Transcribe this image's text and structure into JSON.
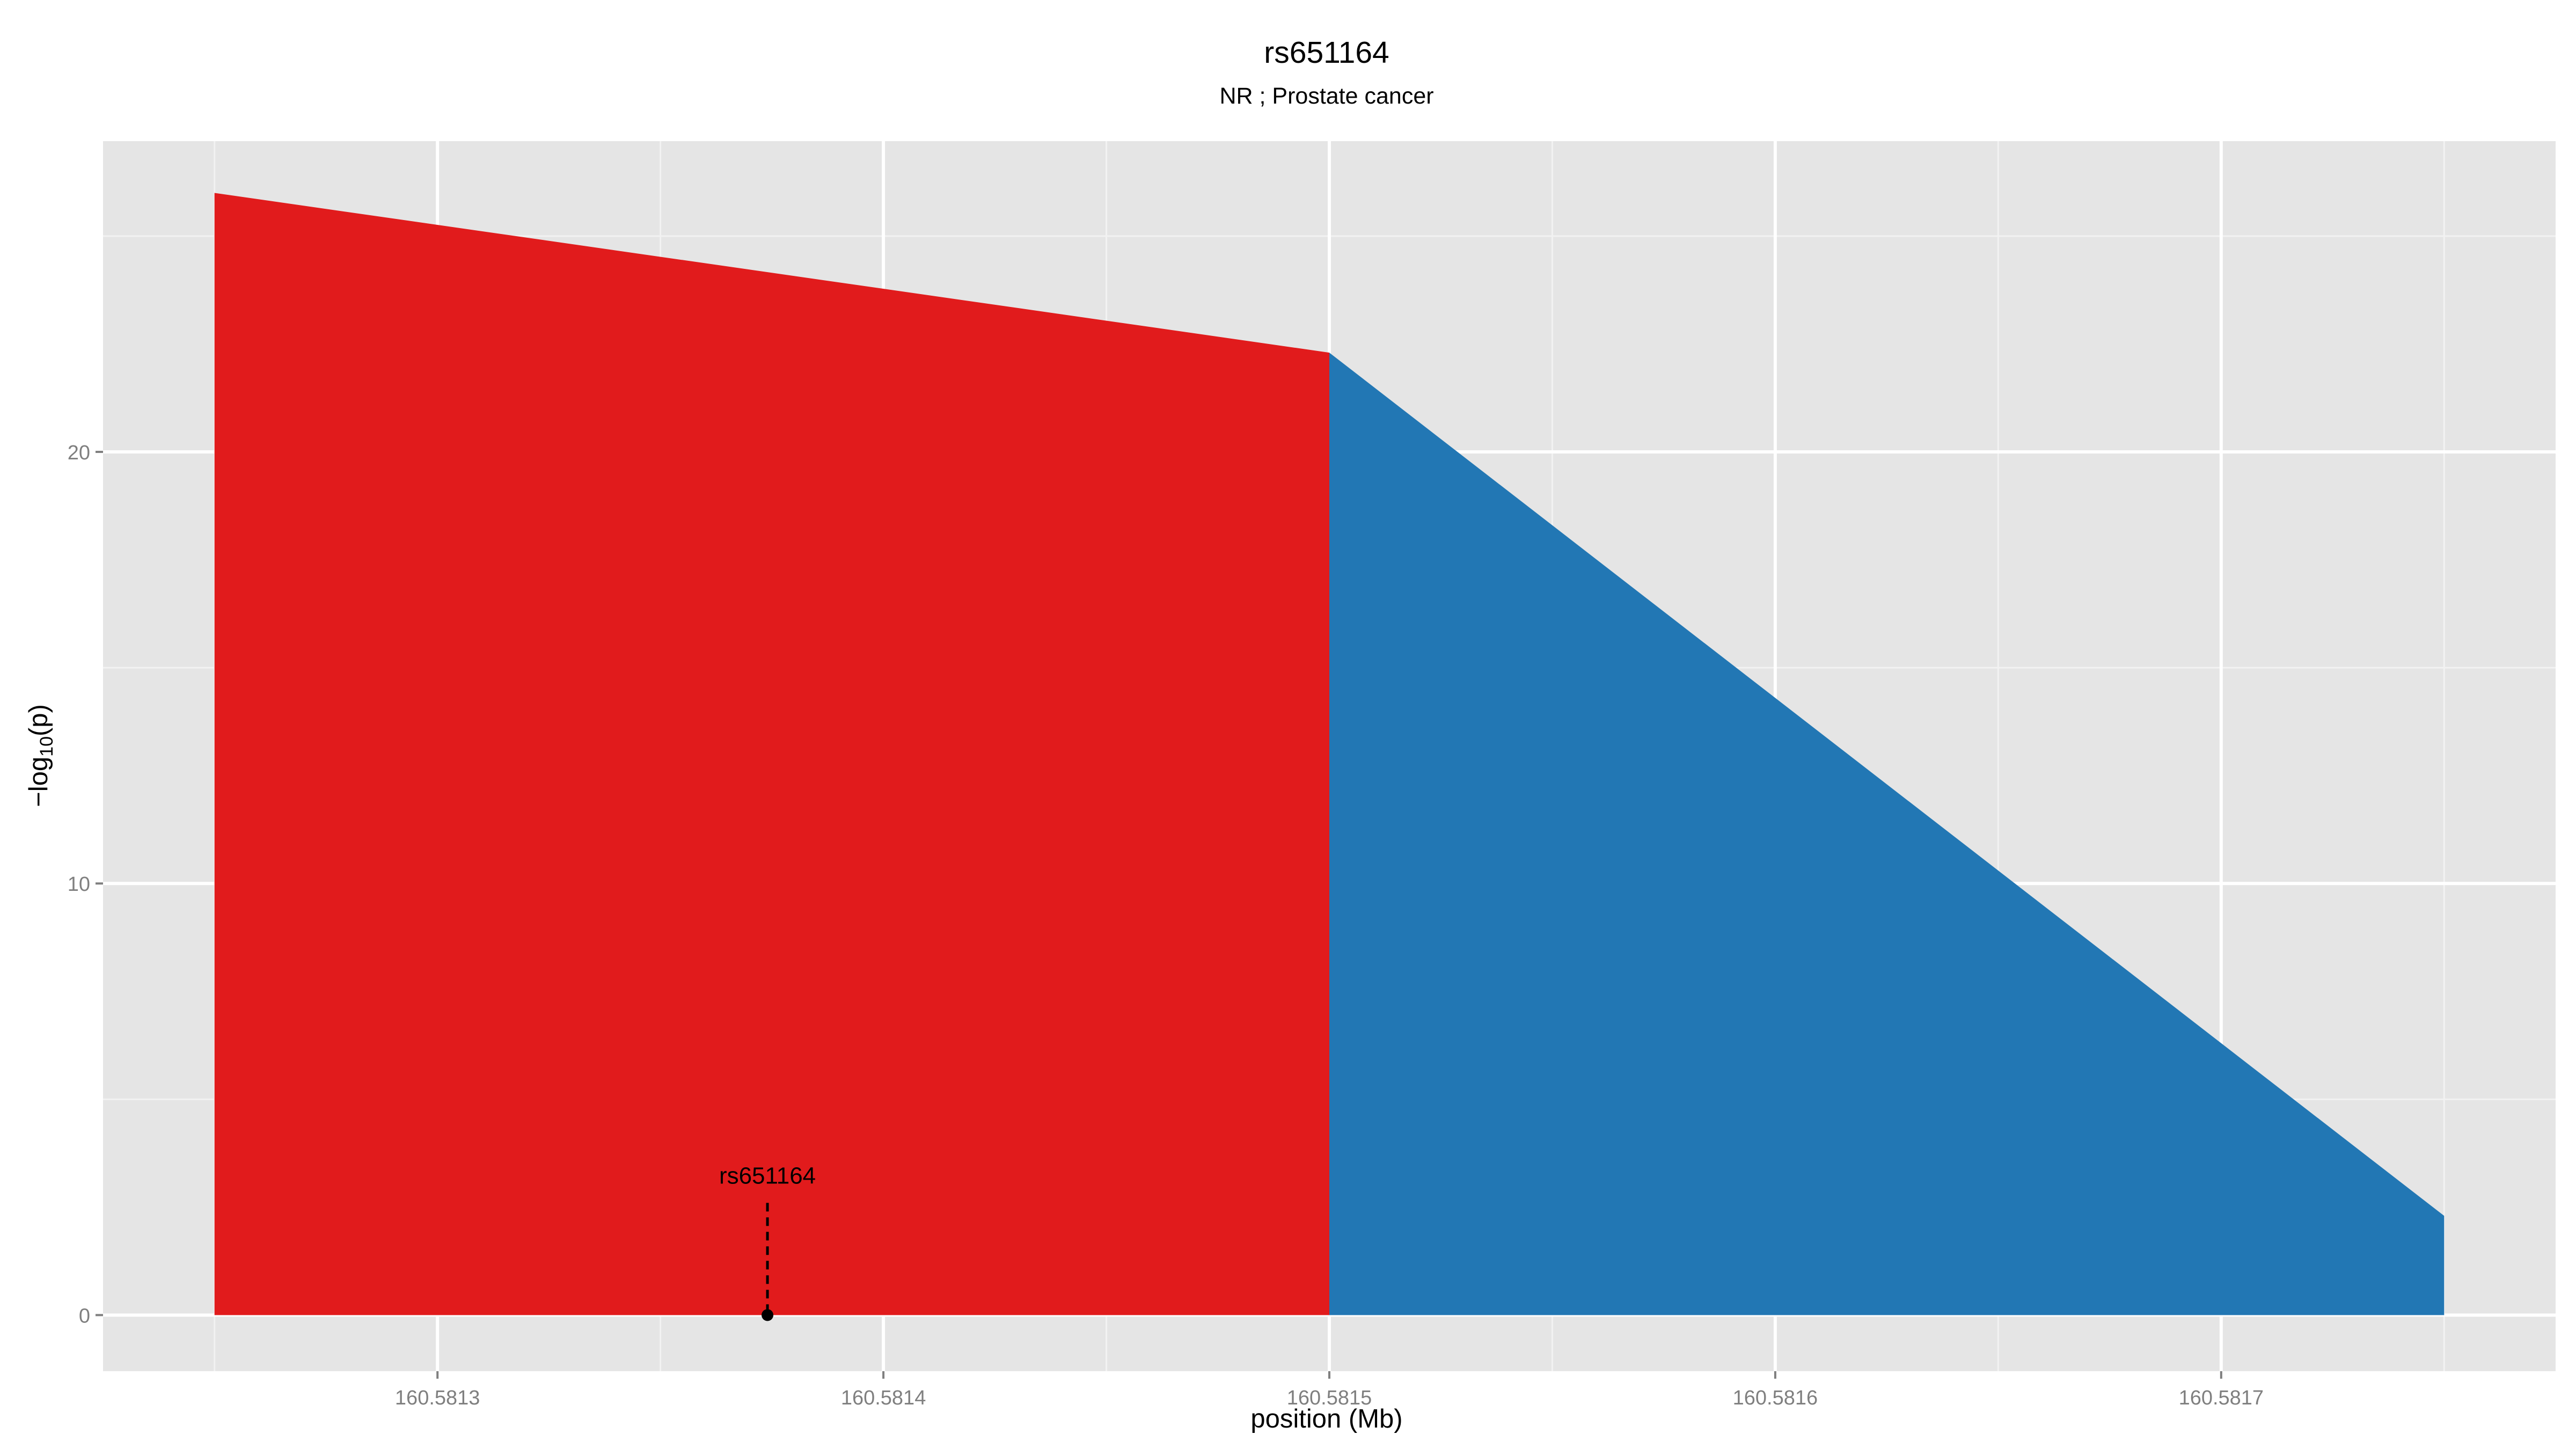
{
  "chart_data": {
    "type": "area",
    "title": "rs651164",
    "subtitle": "NR ; Prostate cancer",
    "xlabel": "position (Mb)",
    "ylabel": "-log10(p)",
    "ylabel_parts": {
      "prefix": "−log",
      "subscript": "10",
      "suffix": "(p)"
    },
    "xlim": [
      160.581225,
      160.581775
    ],
    "ylim": [
      -1.3,
      27.2
    ],
    "x_ticks": [
      160.5813,
      160.5814,
      160.5815,
      160.5816,
      160.5817
    ],
    "x_tick_labels": [
      "160.5813",
      "160.5814",
      "160.5815",
      "160.5816",
      "160.5817"
    ],
    "x_minor_ticks": [
      160.58125,
      160.58135,
      160.58145,
      160.58155,
      160.58165,
      160.58175
    ],
    "y_ticks": [
      0,
      10,
      20
    ],
    "y_tick_labels": [
      "0",
      "10",
      "20"
    ],
    "y_minor_ticks": [
      5,
      15,
      25
    ],
    "grid": true,
    "legend": "none",
    "panel_background": "#e5e5e5",
    "gridline_color": "#ffffff",
    "series": [
      {
        "color": "#e11b1c",
        "points": [
          [
            160.58125,
            0
          ],
          [
            160.58125,
            26.0
          ],
          [
            160.5815,
            22.3
          ],
          [
            160.5815,
            0
          ]
        ]
      },
      {
        "color": "#2277b4",
        "points": [
          [
            160.5815,
            0
          ],
          [
            160.5815,
            22.3
          ],
          [
            160.58175,
            2.3
          ],
          [
            160.58175,
            0
          ]
        ]
      }
    ],
    "annotations": [
      {
        "label": "rs651164",
        "x": 160.581374,
        "y": 0,
        "line_top": 2.6,
        "line_style": "dashed"
      }
    ]
  }
}
